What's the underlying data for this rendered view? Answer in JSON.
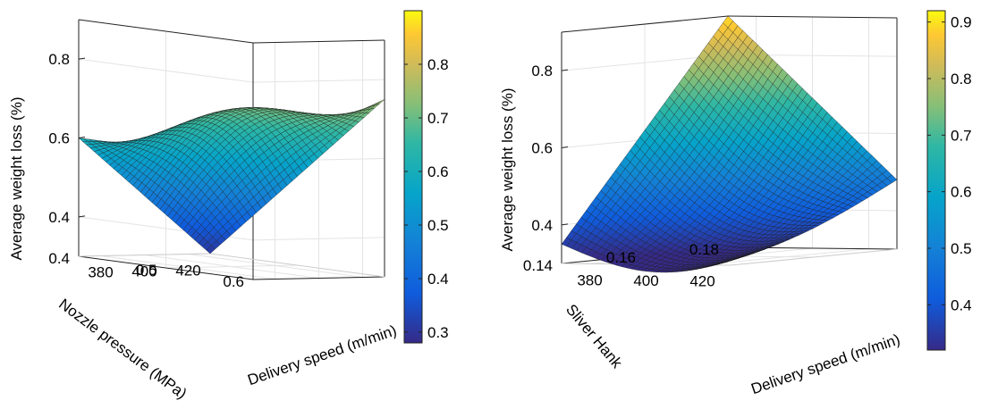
{
  "chart_data": [
    {
      "type": "surface3d",
      "title": "",
      "xlabel": "Delivery speed (m/min)",
      "ylabel": "Nozzle pressure (MPa)",
      "zlabel": "Average weight loss (%)",
      "x_ticks": [
        "380",
        "400",
        "420"
      ],
      "y_ticks": [
        "0.4",
        "0.5",
        "0.6"
      ],
      "z_ticks": [
        "0.4",
        "0.6",
        "0.8"
      ],
      "xlim": [
        370,
        430
      ],
      "ylim": [
        0.4,
        0.6
      ],
      "zlim": [
        0.3,
        0.9
      ],
      "grid": true,
      "colormap": "parula",
      "colorbar": {
        "range": [
          0.28,
          0.9
        ],
        "ticks": [
          "0.3",
          "0.4",
          "0.5",
          "0.6",
          "0.7",
          "0.8"
        ]
      },
      "surface": {
        "x": [
          370,
          430
        ],
        "y": [
          0.4,
          0.6
        ],
        "z_corners": {
          "x370_y0.6": 0.6,
          "x430_y0.6": 0.75,
          "x430_y0.4": 0.3,
          "x370_y0.4": 0.6
        },
        "z_peak": 0.67
      }
    },
    {
      "type": "surface3d",
      "title": "",
      "xlabel": "Delivery speed (m/min)",
      "ylabel": "Sliver Hank",
      "zlabel": "Average weight loss (%)",
      "x_ticks": [
        "380",
        "400",
        "420"
      ],
      "y_ticks": [
        "0.14",
        "0.16",
        "0.18"
      ],
      "z_ticks": [
        "0.4",
        "0.6",
        "0.8"
      ],
      "xlim": [
        370,
        430
      ],
      "ylim": [
        0.14,
        0.18
      ],
      "zlim": [
        0.3,
        0.9
      ],
      "grid": true,
      "colormap": "parula",
      "colorbar": {
        "range": [
          0.32,
          0.92
        ],
        "ticks": [
          "0.4",
          "0.5",
          "0.6",
          "0.7",
          "0.8",
          "0.9"
        ]
      },
      "surface": {
        "x": [
          370,
          430
        ],
        "y": [
          0.14,
          0.18
        ],
        "z_corners": {
          "x370_y0.18": 0.9,
          "x430_y0.18": 0.48,
          "x430_y0.14": 0.33,
          "x370_y0.14": 0.35
        },
        "z_peak": 0.9
      }
    }
  ]
}
